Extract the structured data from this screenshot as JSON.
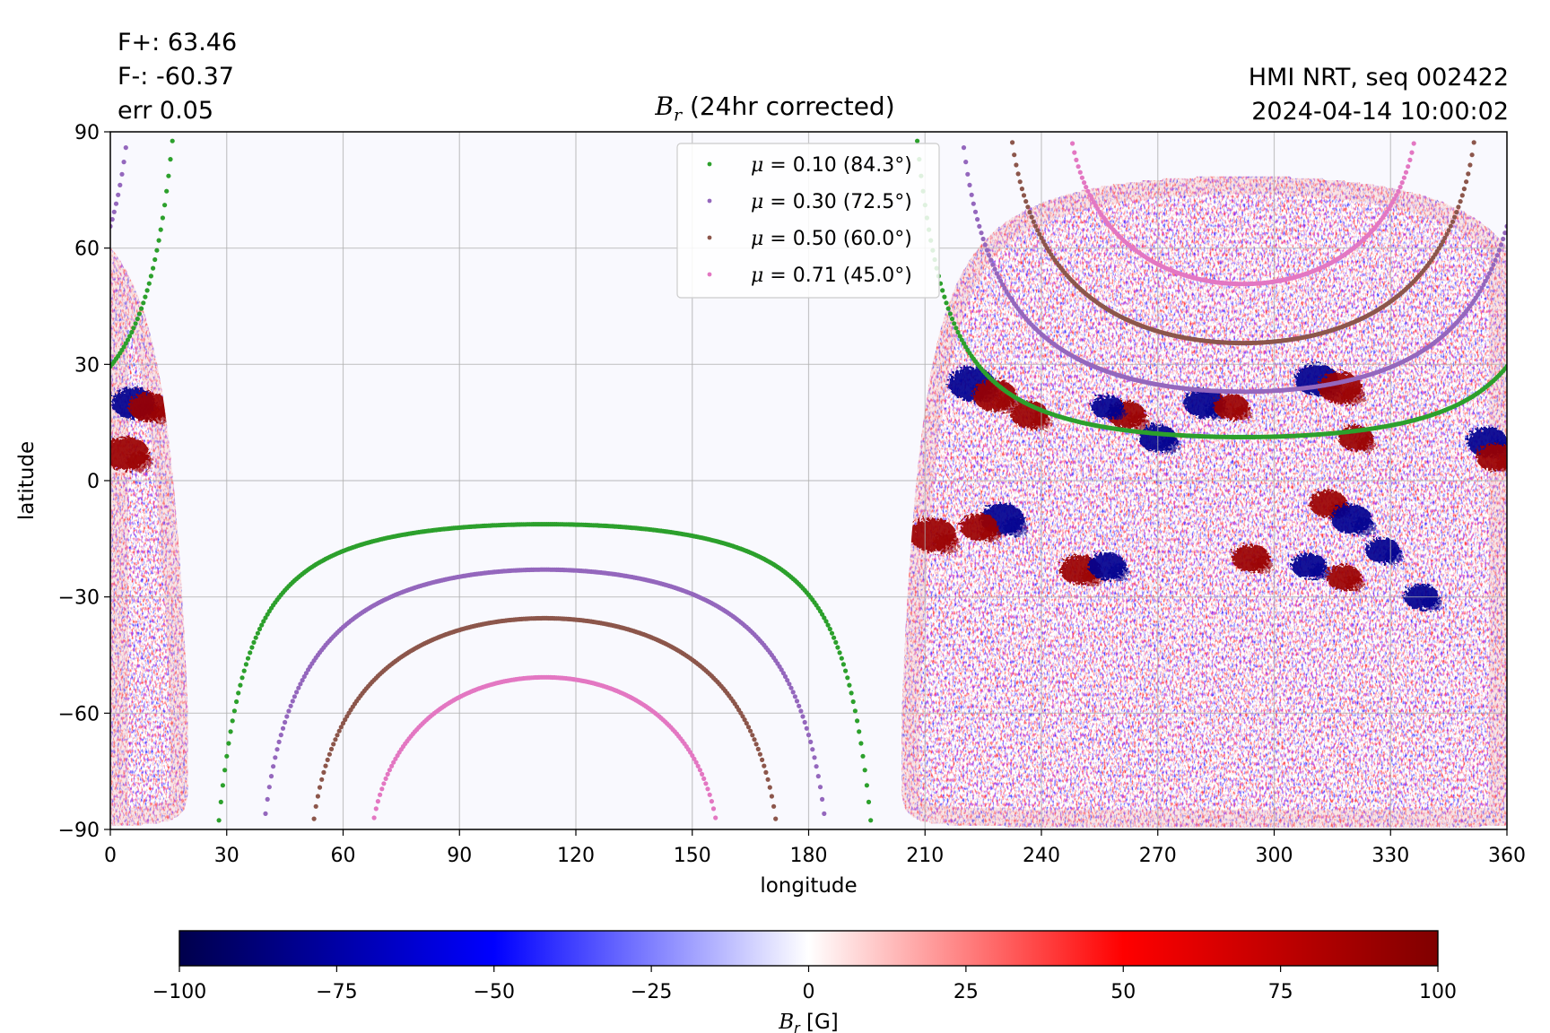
{
  "header": {
    "flux_pos": "F+: 63.46",
    "flux_neg": "F-: -60.37",
    "error": "err 0.05",
    "instrument": "HMI NRT, seq 002422",
    "timestamp": "2024-04-14 10:00:02"
  },
  "chart_data": {
    "type": "heatmap",
    "title": "B_r (24hr corrected)",
    "title_symbol": "B",
    "title_subscript": "r",
    "title_suffix": " (24hr corrected)",
    "xlabel": "longitude",
    "ylabel": "latitude",
    "xlim": [
      0,
      360
    ],
    "ylim": [
      -90,
      90
    ],
    "xticks": [
      0,
      30,
      60,
      90,
      120,
      150,
      180,
      210,
      240,
      270,
      300,
      330,
      360
    ],
    "yticks": [
      90,
      60,
      30,
      0,
      -30,
      -60,
      -90
    ],
    "ytick_labels": [
      "90",
      "60",
      "30",
      "0",
      "−30",
      "−60",
      "−90"
    ],
    "grid": true,
    "legend": {
      "placement": "upper center",
      "entries": [
        {
          "label": "0.10 (84.3°)",
          "mu": 0.1,
          "angle_deg": 84.3,
          "color": "#2ca02c"
        },
        {
          "label": "0.30 (72.5°)",
          "mu": 0.3,
          "angle_deg": 72.5,
          "color": "#9467bd"
        },
        {
          "label": "0.50 (60.0°)",
          "mu": 0.5,
          "angle_deg": 60.0,
          "color": "#8c564b"
        },
        {
          "label": "0.71 (45.0°)",
          "mu": 0.71,
          "angle_deg": 45.0,
          "color": "#e377c2"
        }
      ],
      "symbol": "μ = "
    },
    "disk_center": {
      "longitude": 292,
      "latitude": -5.5
    },
    "colorbar": {
      "label_symbol": "B",
      "label_subscript": "r",
      "label_unit": " [G]",
      "range": [
        -100,
        100
      ],
      "ticks": [
        -100,
        -75,
        -50,
        -25,
        0,
        25,
        50,
        75,
        100
      ],
      "tick_labels": [
        "−100",
        "−75",
        "−50",
        "−25",
        "0",
        "25",
        "50",
        "75",
        "100"
      ],
      "colormap": "seismic",
      "stops": [
        "#00004c",
        "#0000ff",
        "#ffffff",
        "#ff0000",
        "#800000"
      ]
    },
    "active_regions": [
      {
        "lon": 222,
        "lat": 25,
        "polarity": "negative",
        "strength": 1.0
      },
      {
        "lon": 228,
        "lat": 22,
        "polarity": "positive",
        "strength": 0.9
      },
      {
        "lon": 237,
        "lat": 17,
        "polarity": "positive",
        "strength": 0.7
      },
      {
        "lon": 212,
        "lat": -14,
        "polarity": "positive",
        "strength": 1.0
      },
      {
        "lon": 230,
        "lat": -10,
        "polarity": "negative",
        "strength": 0.9
      },
      {
        "lon": 224,
        "lat": -12,
        "polarity": "positive",
        "strength": 0.7
      },
      {
        "lon": 250,
        "lat": -23,
        "polarity": "positive",
        "strength": 0.8
      },
      {
        "lon": 257,
        "lat": -22,
        "polarity": "negative",
        "strength": 0.7
      },
      {
        "lon": 262,
        "lat": 17,
        "polarity": "positive",
        "strength": 0.7
      },
      {
        "lon": 257,
        "lat": 19,
        "polarity": "negative",
        "strength": 0.5
      },
      {
        "lon": 282,
        "lat": 20,
        "polarity": "negative",
        "strength": 0.8
      },
      {
        "lon": 289,
        "lat": 19,
        "polarity": "positive",
        "strength": 0.6
      },
      {
        "lon": 270,
        "lat": 11,
        "polarity": "negative",
        "strength": 0.7
      },
      {
        "lon": 311,
        "lat": 26,
        "polarity": "negative",
        "strength": 0.9
      },
      {
        "lon": 317,
        "lat": 24,
        "polarity": "positive",
        "strength": 0.9
      },
      {
        "lon": 321,
        "lat": 11,
        "polarity": "positive",
        "strength": 0.6
      },
      {
        "lon": 314,
        "lat": -6,
        "polarity": "positive",
        "strength": 0.7
      },
      {
        "lon": 320,
        "lat": -10,
        "polarity": "negative",
        "strength": 0.8
      },
      {
        "lon": 328,
        "lat": -18,
        "polarity": "negative",
        "strength": 0.6
      },
      {
        "lon": 294,
        "lat": -20,
        "polarity": "positive",
        "strength": 0.7
      },
      {
        "lon": 309,
        "lat": -22,
        "polarity": "negative",
        "strength": 0.6
      },
      {
        "lon": 318,
        "lat": -25,
        "polarity": "positive",
        "strength": 0.6
      },
      {
        "lon": 355,
        "lat": 10,
        "polarity": "negative",
        "strength": 0.8
      },
      {
        "lon": 357,
        "lat": 6,
        "polarity": "positive",
        "strength": 0.7
      },
      {
        "lon": 338,
        "lat": -30,
        "polarity": "negative",
        "strength": 0.6
      },
      {
        "lon": 4,
        "lat": 7,
        "polarity": "positive",
        "strength": 1.0
      },
      {
        "lon": 6,
        "lat": 20,
        "polarity": "negative",
        "strength": 0.9
      },
      {
        "lon": 10,
        "lat": 19,
        "polarity": "positive",
        "strength": 0.8
      }
    ]
  }
}
